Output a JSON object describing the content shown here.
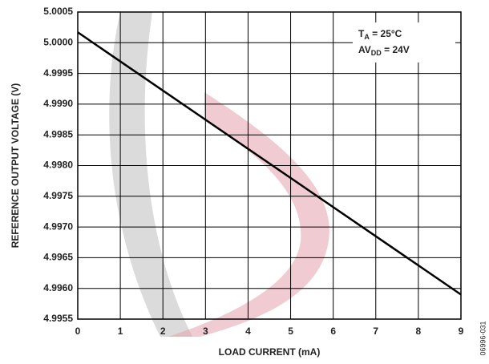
{
  "chart_data": {
    "type": "line",
    "x_label": "LOAD CURRENT (mA)",
    "y_label": "REFERENCE OUTPUT VOLTAGE (V)",
    "x": [
      0,
      9
    ],
    "series": [
      {
        "color": "#000000",
        "values": [
          5.00017,
          4.9959
        ]
      }
    ],
    "xlim": [
      0,
      9
    ],
    "xticks": [
      0,
      1,
      2,
      3,
      4,
      5,
      6,
      7,
      8,
      9
    ],
    "ylim": [
      4.9955,
      5.0005
    ],
    "yticks": [
      4.9955,
      {
        "value": 4.996,
        "label": "4.9960"
      },
      4.9965,
      {
        "value": 4.997,
        "label": "4.9970"
      },
      4.9975,
      {
        "value": 4.998,
        "label": "4.9980"
      },
      4.9985,
      {
        "value": 4.999,
        "label": "4.9990"
      },
      4.9995,
      {
        "value": 5,
        "label": "5.0000"
      },
      5.0005
    ],
    "grid": true,
    "annotations": [
      {
        "main": "T",
        "sub": "A",
        "rest": " = 25°C"
      },
      {
        "main": "AV",
        "sub": "DD",
        "rest": " = 24V"
      }
    ],
    "figure_id": "06996-031"
  }
}
